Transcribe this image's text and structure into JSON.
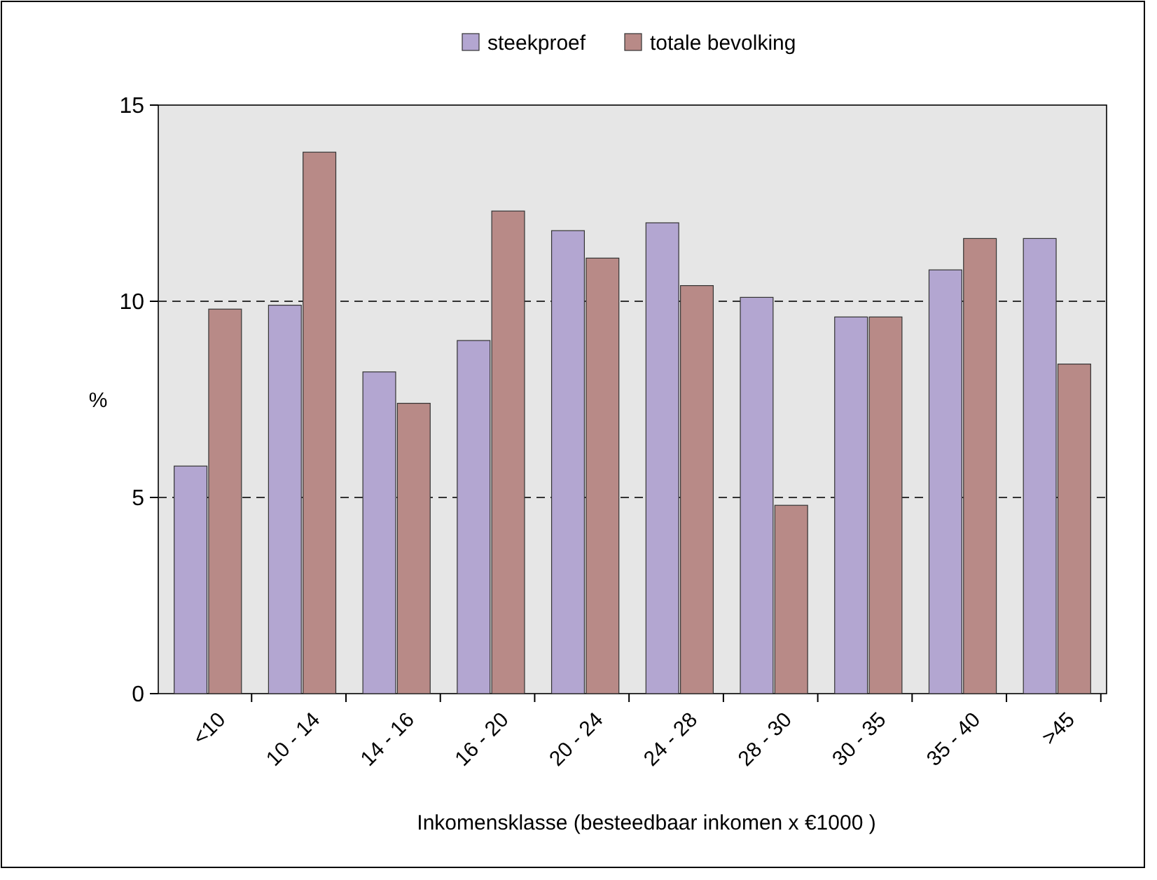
{
  "chart_data": {
    "type": "bar",
    "xlabel": "Inkomensklasse (besteedbaar inkomen x €1000 )",
    "ylabel": "%",
    "categories": [
      "<10",
      "10 - 14",
      "14 - 16",
      "16 - 20",
      "20 - 24",
      "24 - 28",
      "28 - 30",
      "30 - 35",
      "35 - 40",
      ">45"
    ],
    "series": [
      {
        "name": "steekproef",
        "color": "#b3a6d1",
        "values": [
          5.8,
          9.9,
          8.2,
          9.0,
          11.8,
          12.0,
          10.1,
          9.6,
          10.8,
          11.6
        ]
      },
      {
        "name": "totale bevolking",
        "color": "#b88a87",
        "values": [
          9.8,
          13.8,
          7.4,
          12.3,
          11.1,
          10.4,
          4.8,
          9.6,
          11.6,
          8.4
        ]
      }
    ],
    "ylim": [
      0,
      15
    ],
    "yticks": [
      0,
      5,
      10,
      15
    ],
    "grid": "y",
    "line_style": "dashed",
    "legend": "top"
  }
}
